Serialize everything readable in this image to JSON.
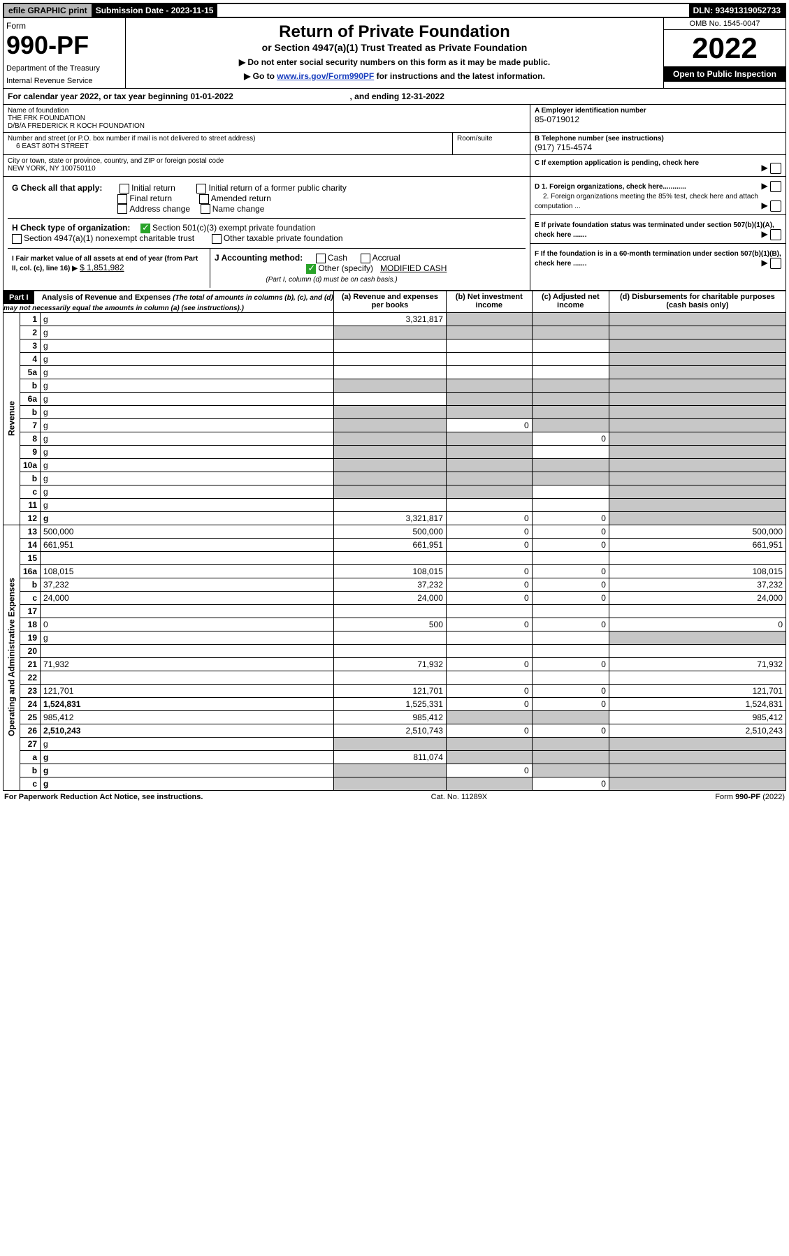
{
  "topbar": {
    "efile": "efile GRAPHIC print",
    "subdate_label": "Submission Date - 2023-11-15",
    "dln": "DLN: 93491319052733"
  },
  "header": {
    "form_word": "Form",
    "form_no": "990-PF",
    "dept": "Department of the Treasury",
    "irs": "Internal Revenue Service",
    "title": "Return of Private Foundation",
    "subtitle": "or Section 4947(a)(1) Trust Treated as Private Foundation",
    "note1": "▶ Do not enter social security numbers on this form as it may be made public.",
    "note2_prefix": "▶ Go to ",
    "note2_link": "www.irs.gov/Form990PF",
    "note2_suffix": " for instructions and the latest information.",
    "omb": "OMB No. 1545-0047",
    "year": "2022",
    "open": "Open to Public Inspection"
  },
  "calendar": {
    "text": "For calendar year 2022, or tax year beginning 01-01-2022",
    "ending": ", and ending 12-31-2022"
  },
  "id": {
    "name_lbl": "Name of foundation",
    "name1": "THE FRK FOUNDATION",
    "name2": "D/B/A FREDERICK R KOCH FOUNDATION",
    "addr_lbl": "Number and street (or P.O. box number if mail is not delivered to street address)",
    "addr": "6 EAST 80TH STREET",
    "room_lbl": "Room/suite",
    "city_lbl": "City or town, state or province, country, and ZIP or foreign postal code",
    "city": "NEW YORK, NY  100750110",
    "A_lbl": "A Employer identification number",
    "A_val": "85-0719012",
    "B_lbl": "B Telephone number (see instructions)",
    "B_val": "(917) 715-4574",
    "C_lbl": "C If exemption application is pending, check here",
    "D1": "D 1. Foreign organizations, check here............",
    "D2": "2. Foreign organizations meeting the 85% test, check here and attach computation ...",
    "E": "E  If private foundation status was terminated under section 507(b)(1)(A), check here .......",
    "F": "F  If the foundation is in a 60-month termination under section 507(b)(1)(B), check here .......",
    "G_lbl": "G Check all that apply:",
    "G_opts": [
      "Initial return",
      "Final return",
      "Address change",
      "Initial return of a former public charity",
      "Amended return",
      "Name change"
    ],
    "H_lbl": "H Check type of organization:",
    "H1": "Section 501(c)(3) exempt private foundation",
    "H2": "Section 4947(a)(1) nonexempt charitable trust",
    "H3": "Other taxable private foundation",
    "I_lbl": "I Fair market value of all assets at end of year (from Part II, col. (c), line 16) ▶",
    "I_val": "$  1,851,982",
    "J_lbl": "J Accounting method:",
    "J_cash": "Cash",
    "J_accr": "Accrual",
    "J_other": "Other (specify)",
    "J_spec": "MODIFIED CASH",
    "J_note": "(Part I, column (d) must be on cash basis.)"
  },
  "part1": {
    "label": "Part I",
    "title": "Analysis of Revenue and Expenses",
    "title_note": "(The total of amounts in columns (b), (c), and (d) may not necessarily equal the amounts in column (a) (see instructions).)",
    "col_a": "(a)  Revenue and expenses per books",
    "col_b": "(b)  Net investment income",
    "col_c": "(c)  Adjusted net income",
    "col_d": "(d)  Disbursements for charitable purposes (cash basis only)"
  },
  "sections": {
    "revenue": "Revenue",
    "opex": "Operating and Administrative Expenses"
  },
  "rows": [
    {
      "n": "1",
      "d": "g",
      "a": "3,321,817",
      "b": "g",
      "c": "g"
    },
    {
      "n": "2",
      "d": "g",
      "a": "g",
      "b": "g",
      "c": "g"
    },
    {
      "n": "3",
      "d": "g",
      "a": "",
      "b": "",
      "c": ""
    },
    {
      "n": "4",
      "d": "g",
      "a": "",
      "b": "",
      "c": ""
    },
    {
      "n": "5a",
      "d": "g",
      "a": "",
      "b": "",
      "c": ""
    },
    {
      "n": "b",
      "d": "g",
      "a": "g",
      "b": "g",
      "c": "g"
    },
    {
      "n": "6a",
      "d": "g",
      "a": "",
      "b": "g",
      "c": "g"
    },
    {
      "n": "b",
      "d": "g",
      "a": "g",
      "b": "g",
      "c": "g"
    },
    {
      "n": "7",
      "d": "g",
      "a": "g",
      "b": "0",
      "c": "g"
    },
    {
      "n": "8",
      "d": "g",
      "a": "g",
      "b": "g",
      "c": "0"
    },
    {
      "n": "9",
      "d": "g",
      "a": "g",
      "b": "g",
      "c": ""
    },
    {
      "n": "10a",
      "d": "g",
      "a": "g",
      "b": "g",
      "c": "g"
    },
    {
      "n": "b",
      "d": "g",
      "a": "g",
      "b": "g",
      "c": "g"
    },
    {
      "n": "c",
      "d": "g",
      "a": "g",
      "b": "g",
      "c": ""
    },
    {
      "n": "11",
      "d": "g",
      "a": "",
      "b": "",
      "c": ""
    },
    {
      "n": "12",
      "d": "g",
      "a": "3,321,817",
      "b": "0",
      "c": "0",
      "bold": true
    },
    {
      "n": "13",
      "d": "500,000",
      "a": "500,000",
      "b": "0",
      "c": "0"
    },
    {
      "n": "14",
      "d": "661,951",
      "a": "661,951",
      "b": "0",
      "c": "0"
    },
    {
      "n": "15",
      "d": "",
      "a": "",
      "b": "",
      "c": ""
    },
    {
      "n": "16a",
      "d": "108,015",
      "a": "108,015",
      "b": "0",
      "c": "0"
    },
    {
      "n": "b",
      "d": "37,232",
      "a": "37,232",
      "b": "0",
      "c": "0"
    },
    {
      "n": "c",
      "d": "24,000",
      "a": "24,000",
      "b": "0",
      "c": "0"
    },
    {
      "n": "17",
      "d": "",
      "a": "",
      "b": "",
      "c": ""
    },
    {
      "n": "18",
      "d": "0",
      "a": "500",
      "b": "0",
      "c": "0"
    },
    {
      "n": "19",
      "d": "g",
      "a": "",
      "b": "",
      "c": ""
    },
    {
      "n": "20",
      "d": "",
      "a": "",
      "b": "",
      "c": ""
    },
    {
      "n": "21",
      "d": "71,932",
      "a": "71,932",
      "b": "0",
      "c": "0"
    },
    {
      "n": "22",
      "d": "",
      "a": "",
      "b": "",
      "c": ""
    },
    {
      "n": "23",
      "d": "121,701",
      "a": "121,701",
      "b": "0",
      "c": "0"
    },
    {
      "n": "24",
      "d": "1,524,831",
      "a": "1,525,331",
      "b": "0",
      "c": "0",
      "bold": true
    },
    {
      "n": "25",
      "d": "985,412",
      "a": "985,412",
      "b": "g",
      "c": "g"
    },
    {
      "n": "26",
      "d": "2,510,243",
      "a": "2,510,743",
      "b": "0",
      "c": "0",
      "bold": true
    },
    {
      "n": "27",
      "d": "g",
      "a": "g",
      "b": "g",
      "c": "g"
    },
    {
      "n": "a",
      "d": "g",
      "a": "811,074",
      "b": "g",
      "c": "g",
      "bold": true
    },
    {
      "n": "b",
      "d": "g",
      "a": "g",
      "b": "0",
      "c": "g",
      "bold": true
    },
    {
      "n": "c",
      "d": "g",
      "a": "g",
      "b": "g",
      "c": "0",
      "bold": true
    }
  ],
  "footer": {
    "left": "For Paperwork Reduction Act Notice, see instructions.",
    "mid": "Cat. No. 11289X",
    "right": "Form 990-PF (2022)"
  },
  "colors": {
    "link": "#1a3fbf",
    "grey": "#c7c7c7",
    "check_green": "#29a329"
  }
}
